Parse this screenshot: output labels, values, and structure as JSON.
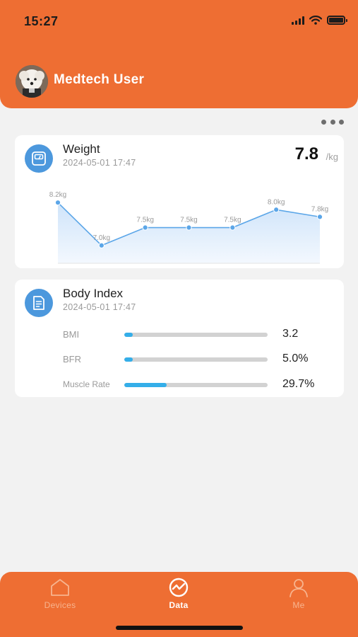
{
  "status_bar": {
    "time": "15:27"
  },
  "header": {
    "user_name": "Medtech User"
  },
  "weight_card": {
    "title": "Weight",
    "timestamp": "2024-05-01 17:47",
    "value": "7.8",
    "unit": "/kg",
    "icon": "scale-icon",
    "chart_data": {
      "type": "area",
      "x": [
        1,
        2,
        3,
        4,
        5,
        6,
        7
      ],
      "values": [
        8.2,
        7.0,
        7.5,
        7.5,
        7.5,
        8.0,
        7.8
      ],
      "point_labels": [
        "8.2kg",
        "7.0kg",
        "7.5kg",
        "7.5kg",
        "7.5kg",
        "8.0kg",
        "7.8kg"
      ],
      "ylim": [
        6.5,
        8.6
      ],
      "grid": false,
      "colors": {
        "line": "#5ba6e8",
        "fill_top": "#cfe4fa",
        "fill_bottom": "#f3f8fe",
        "label": "#9a9a9a"
      }
    }
  },
  "body_index_card": {
    "title": "Body Index",
    "timestamp": "2024-05-01 17:47",
    "icon": "document-icon",
    "metrics": [
      {
        "label": "BMI",
        "value": "3.2",
        "fraction": 0.06
      },
      {
        "label": "BFR",
        "value": "5.0%",
        "fraction": 0.06
      },
      {
        "label": "Muscle Rate",
        "value": "29.7%",
        "fraction": 0.297
      }
    ]
  },
  "tabbar": {
    "tabs": [
      {
        "label": "Devices",
        "icon": "home-icon",
        "active": false
      },
      {
        "label": "Data",
        "icon": "chart-icon",
        "active": true
      },
      {
        "label": "Me",
        "icon": "person-icon",
        "active": false
      }
    ],
    "active_color": "#ffffff",
    "inactive_color": "#f7b48f"
  },
  "colors": {
    "accent": "#ee6e33",
    "icon_blue": "#4c98dd",
    "bar_blue": "#34aee9"
  }
}
